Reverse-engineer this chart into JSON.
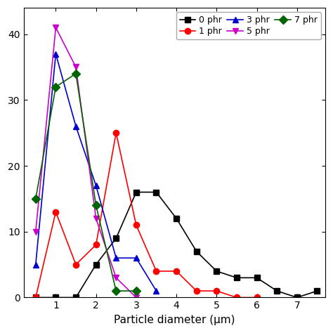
{
  "series_order": [
    "0 phr",
    "1 phr",
    "3 phr",
    "5 phr",
    "7 phr"
  ],
  "series": {
    "0 phr": {
      "color": "#000000",
      "marker": "s",
      "x": [
        0.5,
        1.0,
        1.5,
        2.0,
        2.5,
        3.0,
        3.5,
        4.0,
        4.5,
        5.0,
        5.5,
        6.0,
        6.5,
        7.0,
        7.5
      ],
      "y": [
        0,
        0,
        0,
        5,
        9,
        16,
        16,
        12,
        7,
        4,
        3,
        3,
        1,
        0,
        1
      ]
    },
    "1 phr": {
      "color": "#ff0000",
      "marker": "o",
      "x": [
        0.5,
        1.0,
        1.5,
        2.0,
        2.5,
        3.0,
        3.5,
        4.0,
        4.5,
        5.0,
        5.5,
        6.0
      ],
      "y": [
        0,
        13,
        5,
        8,
        25,
        11,
        4,
        4,
        1,
        1,
        0,
        0
      ]
    },
    "3 phr": {
      "color": "#0000cc",
      "marker": "^",
      "x": [
        0.5,
        1.0,
        1.5,
        2.0,
        2.5,
        3.0,
        3.5
      ],
      "y": [
        5,
        37,
        26,
        17,
        6,
        6,
        1
      ]
    },
    "5 phr": {
      "color": "#cc00cc",
      "marker": "v",
      "x": [
        0.5,
        1.0,
        1.5,
        2.0,
        2.5,
        3.0
      ],
      "y": [
        10,
        41,
        35,
        12,
        3,
        0
      ]
    },
    "7 phr": {
      "color": "#006400",
      "marker": "D",
      "x": [
        0.5,
        1.0,
        1.5,
        2.0,
        2.5,
        3.0
      ],
      "y": [
        15,
        32,
        34,
        14,
        1,
        1
      ]
    }
  },
  "xlabel": "Particle diameter (μm)",
  "xlim": [
    0.2,
    7.7
  ],
  "ylim": [
    0,
    44
  ],
  "yticks": [
    0,
    10,
    20,
    30,
    40
  ],
  "xticks": [
    1,
    2,
    3,
    4,
    5,
    6,
    7
  ],
  "legend_loc": "upper right",
  "background_color": "#ffffff",
  "figsize": [
    4.74,
    4.74
  ],
  "dpi": 100
}
